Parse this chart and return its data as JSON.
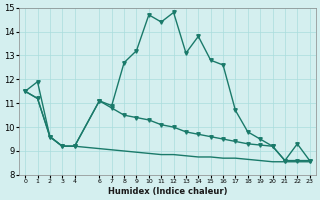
{
  "xlabel": "Humidex (Indice chaleur)",
  "ylabel": "",
  "bg_color": "#d4efef",
  "grid_color": "#aadddd",
  "line_color": "#1a7a6a",
  "line1_x": [
    0,
    1,
    2,
    3,
    4,
    6,
    7,
    8,
    9,
    10,
    11,
    12,
    13,
    14,
    15,
    16,
    17,
    18,
    19,
    20,
    21,
    22,
    23
  ],
  "line1_y": [
    11.5,
    11.9,
    9.6,
    9.2,
    9.2,
    11.1,
    10.9,
    12.7,
    13.2,
    14.7,
    14.4,
    14.8,
    13.1,
    13.8,
    12.8,
    12.6,
    10.7,
    9.8,
    9.5,
    9.2,
    8.6,
    9.3,
    8.6
  ],
  "line2_x": [
    0,
    1,
    2,
    3,
    4,
    6,
    7,
    8,
    9,
    10,
    11,
    12,
    13,
    14,
    15,
    16,
    17,
    18,
    19,
    20,
    21,
    22,
    23
  ],
  "line2_y": [
    11.5,
    11.2,
    9.6,
    9.2,
    9.2,
    11.1,
    10.8,
    10.5,
    10.4,
    10.3,
    10.1,
    10.0,
    9.8,
    9.7,
    9.6,
    9.5,
    9.4,
    9.3,
    9.25,
    9.2,
    8.6,
    8.6,
    8.6
  ],
  "line3_x": [
    0,
    1,
    2,
    3,
    4,
    6,
    7,
    8,
    9,
    10,
    11,
    12,
    13,
    14,
    15,
    16,
    17,
    18,
    19,
    20,
    21,
    22,
    23
  ],
  "line3_y": [
    11.5,
    11.2,
    9.6,
    9.2,
    9.2,
    9.1,
    9.05,
    9.0,
    8.95,
    8.9,
    8.85,
    8.85,
    8.8,
    8.75,
    8.75,
    8.7,
    8.7,
    8.65,
    8.6,
    8.55,
    8.55,
    8.55,
    8.55
  ],
  "xlim": [
    -0.5,
    23.5
  ],
  "ylim": [
    8,
    15
  ],
  "yticks": [
    8,
    9,
    10,
    11,
    12,
    13,
    14,
    15
  ],
  "xticks": [
    0,
    1,
    2,
    3,
    4,
    6,
    7,
    8,
    9,
    10,
    11,
    12,
    13,
    14,
    15,
    16,
    17,
    18,
    19,
    20,
    21,
    22,
    23
  ],
  "xtick_labels": [
    "0",
    "1",
    "2",
    "3",
    "4",
    "6",
    "7",
    "8",
    "9",
    "10",
    "11",
    "12",
    "13",
    "14",
    "15",
    "16",
    "17",
    "18",
    "19",
    "20",
    "21",
    "22",
    "23"
  ]
}
